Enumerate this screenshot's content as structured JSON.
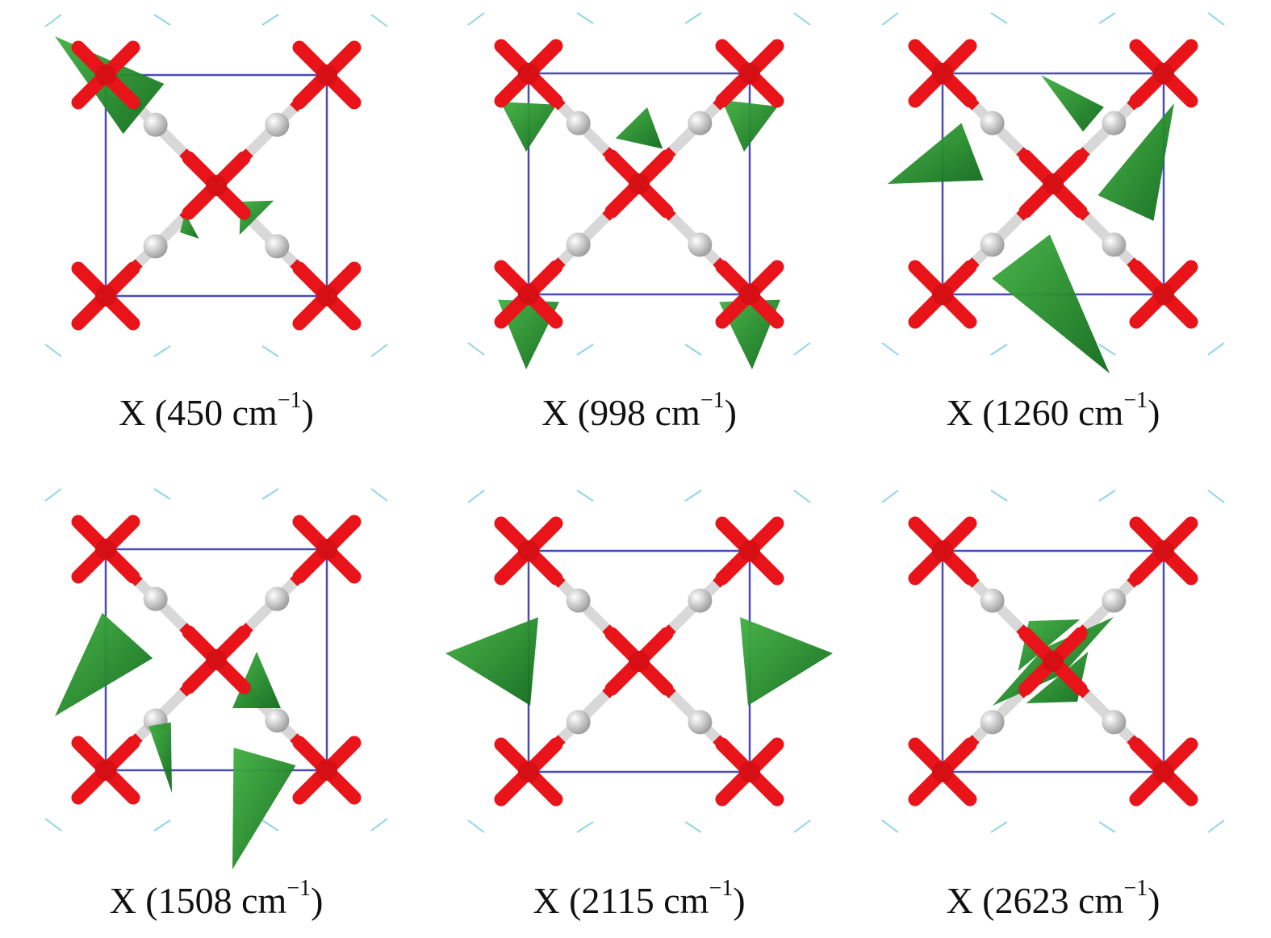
{
  "panels": [
    {
      "text": "X (450 cm",
      "sup": "−1",
      "close": ")"
    },
    {
      "text": "X (998 cm",
      "sup": "−1",
      "close": ")"
    },
    {
      "text": "X (1260 cm",
      "sup": "−1",
      "close": ")"
    },
    {
      "text": "X (1508 cm",
      "sup": "−1",
      "close": ")"
    },
    {
      "text": "X (2115 cm",
      "sup": "−1",
      "close": ")"
    },
    {
      "text": "X (2623 cm",
      "sup": "−1",
      "close": ")"
    }
  ]
}
